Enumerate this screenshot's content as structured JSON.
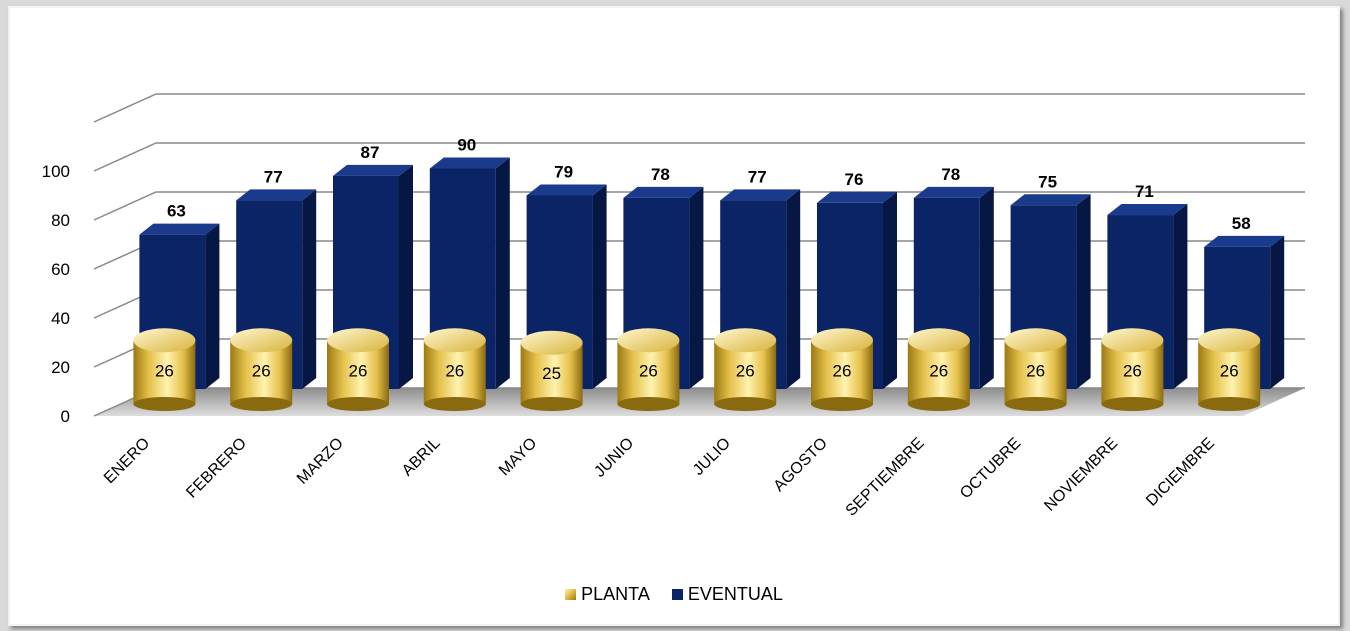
{
  "colors": {
    "planta": "#e8c65a",
    "eventual": "#0b2466",
    "grid": "#888888"
  },
  "chart_data": {
    "type": "bar",
    "categories": [
      "ENERO",
      "FEBRERO",
      "MARZO",
      "ABRIL",
      "MAYO",
      "JUNIO",
      "JULIO",
      "AGOSTO",
      "SEPTIEMBRE",
      "OCTUBRE",
      "NOVIEMBRE",
      "DICIEMBRE"
    ],
    "series": [
      {
        "name": "PLANTA",
        "values": [
          26,
          26,
          26,
          26,
          25,
          26,
          26,
          26,
          26,
          26,
          26,
          26
        ]
      },
      {
        "name": "EVENTUAL",
        "values": [
          63,
          77,
          87,
          90,
          79,
          78,
          77,
          76,
          78,
          75,
          71,
          58
        ]
      }
    ],
    "yticks": [
      0,
      20,
      40,
      60,
      80,
      100
    ],
    "ylim": [
      0,
      120
    ],
    "grid": true,
    "legend_position": "bottom",
    "title": "",
    "xlabel": "",
    "ylabel": ""
  }
}
